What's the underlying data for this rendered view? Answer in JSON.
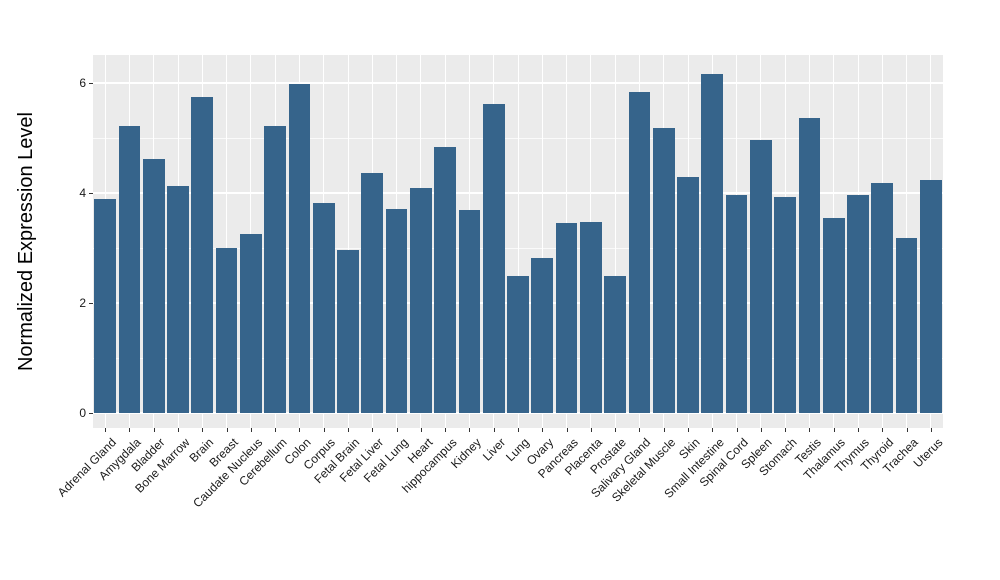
{
  "figure": {
    "ylabel": "Normalized Expression Level"
  },
  "chart_data": {
    "type": "bar",
    "title": "",
    "xlabel": "",
    "ylabel": "Normalized Expression Level",
    "categories": [
      "Adrenal Gland",
      "Amygdala",
      "Bladder",
      "Bone Marrow",
      "Brain",
      "Breast",
      "Caudate Nucleus",
      "Cerebellum",
      "Colon",
      "Corpus",
      "Fetal Brain",
      "Fetal Liver",
      "Fetal Lung",
      "Heart",
      "hippocampus",
      "Kidney",
      "Liver",
      "Lung",
      "Ovary",
      "Pancreas",
      "Placenta",
      "Prostate",
      "Salivary Gland",
      "Skeletal Muscle",
      "Skin",
      "Small Intestine",
      "Spinal Cord",
      "Spleen",
      "Stomach",
      "Testis",
      "Thalamus",
      "Thymus",
      "Thyroid",
      "Trachea",
      "Uterus"
    ],
    "values": [
      3.89,
      5.22,
      4.62,
      4.13,
      5.74,
      3.0,
      3.25,
      5.22,
      5.99,
      3.82,
      2.97,
      4.36,
      3.71,
      4.09,
      4.84,
      3.7,
      5.62,
      2.5,
      2.81,
      3.46,
      3.47,
      2.5,
      5.83,
      5.18,
      4.3,
      6.16,
      3.97,
      4.97,
      3.92,
      5.36,
      3.55,
      3.97,
      4.19,
      3.19,
      4.24
    ],
    "ylim": [
      0,
      6.5
    ],
    "yticks": [
      0,
      2,
      4,
      6
    ],
    "yticks_minor": [
      1,
      3,
      5
    ],
    "grid": "horizontal major+minor, vertical major at category centers",
    "legend": "none",
    "bar_color": "#36648B",
    "panel_bg": "#EBEBEB",
    "grid_color": "#FFFFFF"
  }
}
